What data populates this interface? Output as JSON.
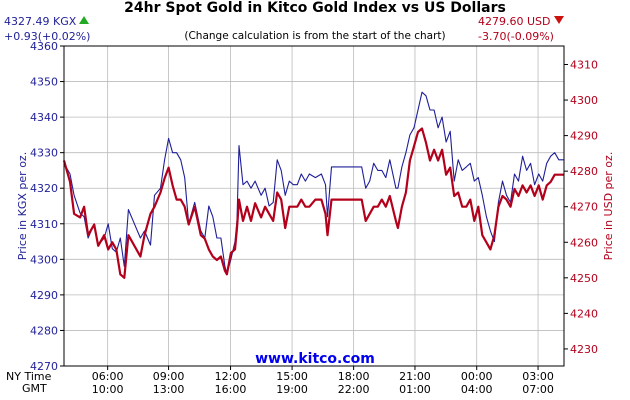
{
  "header": {
    "title": "24hr Spot Gold in Kitco Gold Index vs US Dollars",
    "note": "(Change calculation is from the start of the chart)",
    "kgx_value": "4327.49 KGX",
    "kgx_change": "+0.93(+0.02%)",
    "usd_value": "4279.60 USD",
    "usd_change": "-3.70(-0.09%)",
    "brand": "www.kitco.com",
    "tz_ny": "NY Time",
    "tz_gmt": "GMT"
  },
  "colors": {
    "kgx": "#1f1f99",
    "usd": "#b3001b",
    "up_indicator": "#22aa22",
    "down_indicator": "#cc1111",
    "grid": "#bbbbbb",
    "plot_background": "#ffffff"
  },
  "chart_data": {
    "type": "line",
    "title": "24hr Spot Gold in Kitco Gold Index vs US Dollars",
    "ylabel_left": "Price in KGX per oz.",
    "ylabel_right": "Price in USD per oz.",
    "grid": true,
    "x_ticks": [
      {
        "ny": "06:00",
        "gmt": "10:00",
        "hours": 2.17
      },
      {
        "ny": "09:00",
        "gmt": "13:00",
        "hours": 5.2
      },
      {
        "ny": "12:00",
        "gmt": "16:00",
        "hours": 8.28
      },
      {
        "ny": "15:00",
        "gmt": "19:00",
        "hours": 11.34
      },
      {
        "ny": "18:00",
        "gmt": "22:00",
        "hours": 14.4
      },
      {
        "ny": "21:00",
        "gmt": "01:00",
        "hours": 17.45
      },
      {
        "ny": "00:00",
        "gmt": "04:00",
        "hours": 20.52
      },
      {
        "ny": "03:00",
        "gmt": "07:00",
        "hours": 23.57
      }
    ],
    "xlim_hours": [
      0,
      24.86
    ],
    "yticks_left": [
      4270,
      4280,
      4290,
      4300,
      4310,
      4320,
      4330,
      4340,
      4350,
      4360
    ],
    "ylim_left": [
      4270,
      4360
    ],
    "yticks_right": [
      4230,
      4240,
      4250,
      4260,
      4270,
      4280,
      4290,
      4300,
      4310
    ],
    "ylim_right": [
      4225.2,
      4315.2
    ],
    "series": [
      {
        "name": "KGX",
        "axis": "left",
        "points": [
          [
            0,
            4327
          ],
          [
            0.3,
            4324
          ],
          [
            0.5,
            4318
          ],
          [
            0.8,
            4313
          ],
          [
            1.0,
            4312
          ],
          [
            1.2,
            4306
          ],
          [
            1.5,
            4310
          ],
          [
            1.7,
            4304
          ],
          [
            2.0,
            4306
          ],
          [
            2.2,
            4310
          ],
          [
            2.4,
            4303
          ],
          [
            2.6,
            4302
          ],
          [
            2.8,
            4306
          ],
          [
            3.0,
            4298
          ],
          [
            3.2,
            4314
          ],
          [
            3.5,
            4310
          ],
          [
            3.8,
            4306
          ],
          [
            4.0,
            4308
          ],
          [
            4.3,
            4304
          ],
          [
            4.5,
            4318
          ],
          [
            4.8,
            4320
          ],
          [
            5.0,
            4328
          ],
          [
            5.2,
            4334
          ],
          [
            5.4,
            4330
          ],
          [
            5.6,
            4330
          ],
          [
            5.8,
            4328
          ],
          [
            6.0,
            4323
          ],
          [
            6.2,
            4310
          ],
          [
            6.5,
            4316
          ],
          [
            6.8,
            4308
          ],
          [
            7.0,
            4306
          ],
          [
            7.2,
            4315
          ],
          [
            7.4,
            4312
          ],
          [
            7.6,
            4306
          ],
          [
            7.8,
            4306
          ],
          [
            8.0,
            4298
          ],
          [
            8.1,
            4296
          ],
          [
            8.3,
            4300
          ],
          [
            8.5,
            4305
          ],
          [
            8.6,
            4311
          ],
          [
            8.7,
            4332
          ],
          [
            8.9,
            4321
          ],
          [
            9.1,
            4322
          ],
          [
            9.3,
            4320
          ],
          [
            9.5,
            4322
          ],
          [
            9.8,
            4318
          ],
          [
            10.0,
            4320
          ],
          [
            10.2,
            4315
          ],
          [
            10.4,
            4316
          ],
          [
            10.6,
            4328
          ],
          [
            10.8,
            4325
          ],
          [
            11.0,
            4318
          ],
          [
            11.2,
            4322
          ],
          [
            11.4,
            4321
          ],
          [
            11.6,
            4321
          ],
          [
            11.8,
            4324
          ],
          [
            12.0,
            4322
          ],
          [
            12.2,
            4324
          ],
          [
            12.5,
            4323
          ],
          [
            12.8,
            4324
          ],
          [
            13.0,
            4321
          ],
          [
            13.1,
            4312
          ],
          [
            13.3,
            4326
          ],
          [
            14.0,
            4326
          ],
          [
            14.6,
            4326
          ],
          [
            14.8,
            4326
          ],
          [
            15.0,
            4320
          ],
          [
            15.2,
            4322
          ],
          [
            15.4,
            4327
          ],
          [
            15.6,
            4325
          ],
          [
            15.8,
            4325
          ],
          [
            16.0,
            4323
          ],
          [
            16.2,
            4328
          ],
          [
            16.5,
            4320
          ],
          [
            16.6,
            4320
          ],
          [
            16.8,
            4326
          ],
          [
            17.0,
            4330
          ],
          [
            17.2,
            4335
          ],
          [
            17.4,
            4337
          ],
          [
            17.6,
            4342
          ],
          [
            17.8,
            4347
          ],
          [
            18.0,
            4346
          ],
          [
            18.2,
            4342
          ],
          [
            18.4,
            4342
          ],
          [
            18.6,
            4337
          ],
          [
            18.8,
            4340
          ],
          [
            19.0,
            4333
          ],
          [
            19.2,
            4336
          ],
          [
            19.4,
            4322
          ],
          [
            19.6,
            4328
          ],
          [
            19.8,
            4325
          ],
          [
            20.0,
            4326
          ],
          [
            20.2,
            4327
          ],
          [
            20.4,
            4322
          ],
          [
            20.6,
            4323
          ],
          [
            20.8,
            4318
          ],
          [
            21.0,
            4312
          ],
          [
            21.2,
            4308
          ],
          [
            21.4,
            4305
          ],
          [
            21.6,
            4316
          ],
          [
            21.8,
            4322
          ],
          [
            22.0,
            4318
          ],
          [
            22.2,
            4316
          ],
          [
            22.4,
            4324
          ],
          [
            22.6,
            4322
          ],
          [
            22.8,
            4329
          ],
          [
            23.0,
            4325
          ],
          [
            23.2,
            4327
          ],
          [
            23.4,
            4321
          ],
          [
            23.6,
            4324
          ],
          [
            23.8,
            4322
          ],
          [
            24.0,
            4327
          ],
          [
            24.2,
            4329
          ],
          [
            24.4,
            4330
          ],
          [
            24.6,
            4328
          ],
          [
            24.86,
            4328
          ]
        ]
      },
      {
        "name": "USD",
        "axis": "right",
        "points": [
          [
            0,
            4283
          ],
          [
            0.3,
            4277
          ],
          [
            0.5,
            4268
          ],
          [
            0.8,
            4267
          ],
          [
            1.0,
            4270
          ],
          [
            1.2,
            4262
          ],
          [
            1.5,
            4265
          ],
          [
            1.7,
            4259
          ],
          [
            2.0,
            4262
          ],
          [
            2.2,
            4258
          ],
          [
            2.4,
            4260
          ],
          [
            2.6,
            4258
          ],
          [
            2.8,
            4251
          ],
          [
            3.0,
            4250
          ],
          [
            3.2,
            4262
          ],
          [
            3.5,
            4259
          ],
          [
            3.8,
            4256
          ],
          [
            4.0,
            4262
          ],
          [
            4.3,
            4268
          ],
          [
            4.5,
            4270
          ],
          [
            4.8,
            4274
          ],
          [
            5.0,
            4278
          ],
          [
            5.2,
            4281
          ],
          [
            5.4,
            4276
          ],
          [
            5.6,
            4272
          ],
          [
            5.8,
            4272
          ],
          [
            6.0,
            4270
          ],
          [
            6.2,
            4265
          ],
          [
            6.5,
            4270
          ],
          [
            6.8,
            4262
          ],
          [
            7.0,
            4261
          ],
          [
            7.2,
            4258
          ],
          [
            7.4,
            4256
          ],
          [
            7.6,
            4255
          ],
          [
            7.8,
            4256
          ],
          [
            8.0,
            4252
          ],
          [
            8.1,
            4251
          ],
          [
            8.3,
            4257
          ],
          [
            8.5,
            4258
          ],
          [
            8.6,
            4264
          ],
          [
            8.7,
            4272
          ],
          [
            8.9,
            4266
          ],
          [
            9.1,
            4270
          ],
          [
            9.3,
            4266
          ],
          [
            9.5,
            4271
          ],
          [
            9.8,
            4267
          ],
          [
            10.0,
            4270
          ],
          [
            10.2,
            4268
          ],
          [
            10.4,
            4266
          ],
          [
            10.6,
            4274
          ],
          [
            10.8,
            4272
          ],
          [
            11.0,
            4264
          ],
          [
            11.2,
            4270
          ],
          [
            11.4,
            4270
          ],
          [
            11.6,
            4270
          ],
          [
            11.8,
            4272
          ],
          [
            12.0,
            4270
          ],
          [
            12.2,
            4270
          ],
          [
            12.5,
            4272
          ],
          [
            12.8,
            4272
          ],
          [
            13.0,
            4268
          ],
          [
            13.1,
            4262
          ],
          [
            13.3,
            4272
          ],
          [
            14.0,
            4272
          ],
          [
            14.6,
            4272
          ],
          [
            14.8,
            4272
          ],
          [
            15.0,
            4266
          ],
          [
            15.2,
            4268
          ],
          [
            15.4,
            4270
          ],
          [
            15.6,
            4270
          ],
          [
            15.8,
            4272
          ],
          [
            16.0,
            4270
          ],
          [
            16.2,
            4273
          ],
          [
            16.5,
            4266
          ],
          [
            16.6,
            4264
          ],
          [
            16.8,
            4270
          ],
          [
            17.0,
            4274
          ],
          [
            17.2,
            4283
          ],
          [
            17.4,
            4287
          ],
          [
            17.6,
            4291
          ],
          [
            17.8,
            4292
          ],
          [
            18.0,
            4288
          ],
          [
            18.2,
            4283
          ],
          [
            18.4,
            4286
          ],
          [
            18.6,
            4283
          ],
          [
            18.8,
            4286
          ],
          [
            19.0,
            4279
          ],
          [
            19.2,
            4281
          ],
          [
            19.4,
            4273
          ],
          [
            19.6,
            4274
          ],
          [
            19.8,
            4270
          ],
          [
            20.0,
            4270
          ],
          [
            20.2,
            4272
          ],
          [
            20.4,
            4266
          ],
          [
            20.6,
            4270
          ],
          [
            20.8,
            4262
          ],
          [
            21.0,
            4260
          ],
          [
            21.2,
            4258
          ],
          [
            21.4,
            4262
          ],
          [
            21.6,
            4270
          ],
          [
            21.8,
            4273
          ],
          [
            22.0,
            4272
          ],
          [
            22.2,
            4270
          ],
          [
            22.4,
            4275
          ],
          [
            22.6,
            4273
          ],
          [
            22.8,
            4276
          ],
          [
            23.0,
            4274
          ],
          [
            23.2,
            4276
          ],
          [
            23.4,
            4273
          ],
          [
            23.6,
            4276
          ],
          [
            23.8,
            4272
          ],
          [
            24.0,
            4276
          ],
          [
            24.2,
            4277
          ],
          [
            24.4,
            4279
          ],
          [
            24.6,
            4279
          ],
          [
            24.86,
            4279
          ]
        ]
      }
    ]
  }
}
